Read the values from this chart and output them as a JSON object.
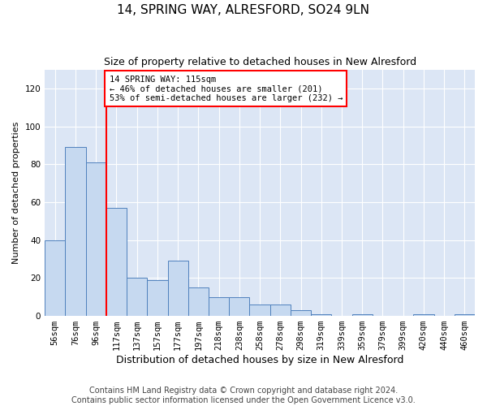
{
  "title": "14, SPRING WAY, ALRESFORD, SO24 9LN",
  "subtitle": "Size of property relative to detached houses in New Alresford",
  "xlabel": "Distribution of detached houses by size in New Alresford",
  "ylabel": "Number of detached properties",
  "categories": [
    "56sqm",
    "76sqm",
    "96sqm",
    "117sqm",
    "137sqm",
    "157sqm",
    "177sqm",
    "197sqm",
    "218sqm",
    "238sqm",
    "258sqm",
    "278sqm",
    "298sqm",
    "319sqm",
    "339sqm",
    "359sqm",
    "379sqm",
    "399sqm",
    "420sqm",
    "440sqm",
    "460sqm"
  ],
  "values": [
    40,
    89,
    81,
    57,
    20,
    19,
    29,
    15,
    10,
    10,
    6,
    6,
    3,
    1,
    0,
    1,
    0,
    0,
    1,
    0,
    1
  ],
  "bar_color": "#c6d9f0",
  "bar_edge_color": "#4f81bd",
  "vline_bin_index": 2.5,
  "annotation_text": "14 SPRING WAY: 115sqm\n← 46% of detached houses are smaller (201)\n53% of semi-detached houses are larger (232) →",
  "annotation_box_color": "white",
  "annotation_box_edgecolor": "red",
  "vline_color": "red",
  "ylim": [
    0,
    130
  ],
  "yticks": [
    0,
    20,
    40,
    60,
    80,
    100,
    120
  ],
  "footer_line1": "Contains HM Land Registry data © Crown copyright and database right 2024.",
  "footer_line2": "Contains public sector information licensed under the Open Government Licence v3.0.",
  "bg_color": "#dce6f5",
  "title_fontsize": 11,
  "subtitle_fontsize": 9,
  "xlabel_fontsize": 9,
  "ylabel_fontsize": 8,
  "footer_fontsize": 7,
  "tick_fontsize": 7.5
}
